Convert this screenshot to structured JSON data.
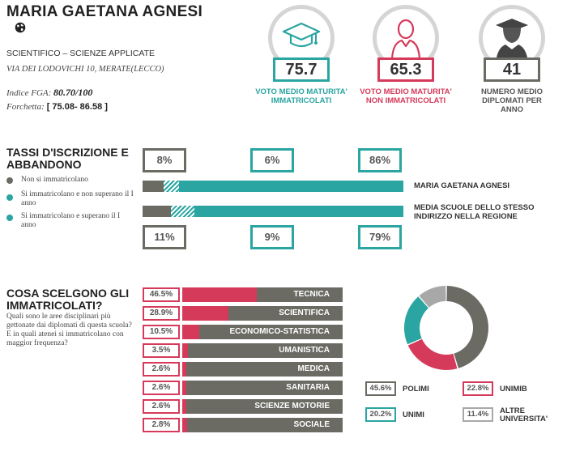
{
  "school": {
    "name": "MARIA GAETANA AGNESI",
    "type": "SCIENTIFICO – SCIENZE APPLICATE",
    "address": "VIA DEI LODOVICHI 10, MERATE(LECCO)",
    "fga_label": "Indice FGA:",
    "fga_value": "80.70/100",
    "forchetta_label": "Forchetta:",
    "forchetta_value": "[ 75.08- 86.58 ]",
    "globe_icon": "globe-icon"
  },
  "stats": [
    {
      "value": "75.7",
      "caption": "VOTO MEDIO MATURITA' IMMATRICOLATI",
      "color": "#2aa5a1",
      "icon": "graduation-cap-icon"
    },
    {
      "value": "65.3",
      "caption": "VOTO MEDIO MATURITA' NON IMMATRICOLATI",
      "color": "#d63a5a",
      "icon": "person-icon"
    },
    {
      "value": "41",
      "caption": "NUMERO MEDIO DIPLOMATI PER ANNO",
      "color": "#6b6b64",
      "icon": "graduate-avatar-icon"
    }
  ],
  "iscrizione": {
    "title": "TASSI D'ISCRIZIONE E ABBANDONO",
    "legend": [
      {
        "label": "Non si immatricolano",
        "color": "#6b6b64"
      },
      {
        "label": "Si immatricolano e non superano il I anno",
        "color": "#2aa5a1"
      },
      {
        "label": "Si immatricolano e superano il I anno",
        "color": "#2aa5a1"
      }
    ],
    "school_row": {
      "label": "MARIA GAETANA AGNESI",
      "non": "8%",
      "abbandono": "6%",
      "superano": "86%",
      "non_frac": 0.08,
      "abbandono_frac": 0.06,
      "superano_frac": 0.86
    },
    "region_row": {
      "label": "MEDIA SCUOLE DELLO STESSO INDIRIZZO NELLA REGIONE",
      "non": "11%",
      "abbandono": "9%",
      "superano": "79%",
      "non_frac": 0.11,
      "abbandono_frac": 0.09,
      "superano_frac": 0.79
    }
  },
  "scelte": {
    "title": "COSA SCELGONO GLI IMMATRICOLATI?",
    "question": "Quali sono le aree disciplinari più gettonate dai diplomati di questa scuola? E in quali atenei si immatricolano con maggior frequenza?",
    "areas": [
      {
        "pct": "46.5%",
        "label": "TECNICA",
        "value": 46.5
      },
      {
        "pct": "28.9%",
        "label": "SCIENTIFICA",
        "value": 28.9
      },
      {
        "pct": "10.5%",
        "label": "ECONOMICO-STATISTICA",
        "value": 10.5
      },
      {
        "pct": "3.5%",
        "label": "UMANISTICA",
        "value": 3.5
      },
      {
        "pct": "2.6%",
        "label": "MEDICA",
        "value": 2.6
      },
      {
        "pct": "2.6%",
        "label": "SANITARIA",
        "value": 2.6
      },
      {
        "pct": "2.6%",
        "label": "SCIENZE MOTORIE",
        "value": 2.6
      },
      {
        "pct": "2.8%",
        "label": "SOCIALE",
        "value": 2.8
      }
    ],
    "universities": [
      {
        "pct": "45.6%",
        "label": "POLIMI",
        "value": 45.6,
        "color": "#6b6b64"
      },
      {
        "pct": "22.8%",
        "label": "UNIMIB",
        "value": 22.8,
        "color": "#d63a5a"
      },
      {
        "pct": "20.2%",
        "label": "UNIMI",
        "value": 20.2,
        "color": "#2aa5a1"
      },
      {
        "pct": "11.4%",
        "label": "ALTRE UNIVERSITA'",
        "value": 11.4,
        "color": "#a8a8a8"
      }
    ]
  }
}
